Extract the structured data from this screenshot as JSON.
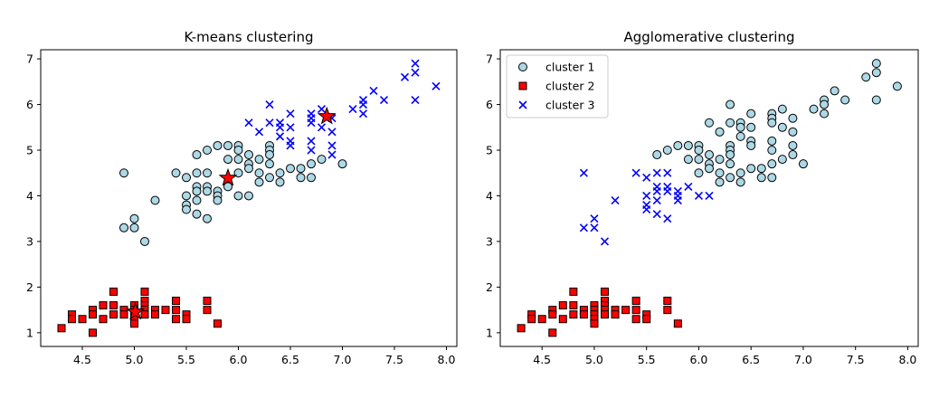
{
  "colors": {
    "cluster1": "#add8e6",
    "cluster2": "#ff0000",
    "cluster3": "#0000ff",
    "centroid": "#ff0000",
    "edge": "#000000"
  },
  "chart_data": [
    {
      "type": "scatter",
      "title": "K-means clustering",
      "xlabel": "",
      "ylabel": "",
      "xlim": [
        4.1,
        8.1
      ],
      "ylim": [
        0.7,
        7.2
      ],
      "xticks": [
        4.5,
        5.0,
        5.5,
        6.0,
        6.5,
        7.0,
        7.5,
        8.0
      ],
      "yticks": [
        1,
        2,
        3,
        4,
        5,
        6,
        7
      ],
      "grid": false,
      "legend": null,
      "series": [
        {
          "marker": "circle",
          "color_key": "cluster1",
          "points": [
            [
              4.9,
              4.5
            ],
            [
              4.9,
              3.3
            ],
            [
              5.0,
              3.5
            ],
            [
              5.0,
              3.3
            ],
            [
              5.1,
              3.0
            ],
            [
              5.2,
              3.9
            ],
            [
              5.4,
              4.5
            ],
            [
              5.5,
              4.4
            ],
            [
              5.5,
              4.0
            ],
            [
              5.5,
              3.8
            ],
            [
              5.5,
              3.7
            ],
            [
              5.6,
              4.9
            ],
            [
              5.6,
              4.5
            ],
            [
              5.6,
              4.2
            ],
            [
              5.6,
              4.1
            ],
            [
              5.6,
              3.9
            ],
            [
              5.6,
              3.6
            ],
            [
              5.7,
              5.0
            ],
            [
              5.7,
              4.5
            ],
            [
              5.7,
              4.2
            ],
            [
              5.7,
              4.1
            ],
            [
              5.7,
              3.5
            ],
            [
              5.8,
              5.1
            ],
            [
              5.8,
              4.1
            ],
            [
              5.8,
              4.0
            ],
            [
              5.8,
              3.9
            ],
            [
              5.9,
              5.1
            ],
            [
              5.9,
              4.8
            ],
            [
              5.9,
              4.2
            ],
            [
              6.0,
              5.1
            ],
            [
              6.0,
              5.0
            ],
            [
              6.0,
              4.8
            ],
            [
              6.0,
              4.5
            ],
            [
              6.0,
              4.0
            ],
            [
              6.1,
              4.9
            ],
            [
              6.1,
              4.7
            ],
            [
              6.1,
              4.6
            ],
            [
              6.1,
              4.0
            ],
            [
              6.2,
              4.8
            ],
            [
              6.2,
              4.5
            ],
            [
              6.2,
              4.3
            ],
            [
              6.3,
              5.1
            ],
            [
              6.3,
              5.0
            ],
            [
              6.3,
              4.9
            ],
            [
              6.3,
              4.7
            ],
            [
              6.3,
              4.4
            ],
            [
              6.4,
              4.5
            ],
            [
              6.4,
              4.3
            ],
            [
              6.5,
              4.6
            ],
            [
              6.6,
              4.6
            ],
            [
              6.6,
              4.4
            ],
            [
              6.7,
              4.7
            ],
            [
              6.7,
              4.4
            ],
            [
              6.8,
              4.8
            ],
            [
              7.0,
              4.7
            ]
          ]
        },
        {
          "marker": "square",
          "color_key": "cluster2",
          "points": [
            [
              4.3,
              1.1
            ],
            [
              4.4,
              1.4
            ],
            [
              4.4,
              1.3
            ],
            [
              4.5,
              1.3
            ],
            [
              4.6,
              1.5
            ],
            [
              4.6,
              1.4
            ],
            [
              4.6,
              1.0
            ],
            [
              4.7,
              1.6
            ],
            [
              4.7,
              1.3
            ],
            [
              4.8,
              1.9
            ],
            [
              4.8,
              1.6
            ],
            [
              4.8,
              1.4
            ],
            [
              4.9,
              1.5
            ],
            [
              4.9,
              1.4
            ],
            [
              5.0,
              1.6
            ],
            [
              5.0,
              1.5
            ],
            [
              5.0,
              1.4
            ],
            [
              5.0,
              1.3
            ],
            [
              5.0,
              1.2
            ],
            [
              5.1,
              1.9
            ],
            [
              5.1,
              1.7
            ],
            [
              5.1,
              1.6
            ],
            [
              5.1,
              1.5
            ],
            [
              5.1,
              1.4
            ],
            [
              5.2,
              1.5
            ],
            [
              5.2,
              1.4
            ],
            [
              5.3,
              1.5
            ],
            [
              5.4,
              1.7
            ],
            [
              5.4,
              1.5
            ],
            [
              5.4,
              1.3
            ],
            [
              5.5,
              1.4
            ],
            [
              5.5,
              1.3
            ],
            [
              5.7,
              1.7
            ],
            [
              5.7,
              1.5
            ],
            [
              5.8,
              1.2
            ]
          ]
        },
        {
          "marker": "x",
          "color_key": "cluster3",
          "points": [
            [
              6.1,
              5.6
            ],
            [
              6.2,
              5.4
            ],
            [
              6.3,
              6.0
            ],
            [
              6.3,
              5.6
            ],
            [
              6.4,
              5.6
            ],
            [
              6.4,
              5.5
            ],
            [
              6.4,
              5.3
            ],
            [
              6.5,
              5.8
            ],
            [
              6.5,
              5.5
            ],
            [
              6.5,
              5.2
            ],
            [
              6.5,
              5.1
            ],
            [
              6.7,
              5.8
            ],
            [
              6.7,
              5.7
            ],
            [
              6.7,
              5.6
            ],
            [
              6.7,
              5.2
            ],
            [
              6.7,
              5.0
            ],
            [
              6.8,
              5.9
            ],
            [
              6.8,
              5.5
            ],
            [
              6.9,
              5.7
            ],
            [
              6.9,
              5.4
            ],
            [
              6.9,
              5.1
            ],
            [
              6.9,
              4.9
            ],
            [
              7.1,
              5.9
            ],
            [
              7.2,
              6.1
            ],
            [
              7.2,
              6.0
            ],
            [
              7.2,
              5.8
            ],
            [
              7.3,
              6.3
            ],
            [
              7.4,
              6.1
            ],
            [
              7.6,
              6.6
            ],
            [
              7.7,
              6.9
            ],
            [
              7.7,
              6.7
            ],
            [
              7.7,
              6.1
            ],
            [
              7.9,
              6.4
            ]
          ]
        }
      ],
      "centroids": [
        [
          5.9,
          4.39
        ],
        [
          5.01,
          1.46
        ],
        [
          6.85,
          5.74
        ]
      ]
    },
    {
      "type": "scatter",
      "title": "Agglomerative clustering",
      "xlabel": "",
      "ylabel": "",
      "xlim": [
        4.1,
        8.1
      ],
      "ylim": [
        0.7,
        7.2
      ],
      "xticks": [
        4.5,
        5.0,
        5.5,
        6.0,
        6.5,
        7.0,
        7.5,
        8.0
      ],
      "yticks": [
        1,
        2,
        3,
        4,
        5,
        6,
        7
      ],
      "grid": false,
      "legend": "top-left",
      "series": [
        {
          "name": "cluster 1",
          "marker": "circle",
          "color_key": "cluster1",
          "points": [
            [
              5.6,
              4.9
            ],
            [
              5.7,
              5.0
            ],
            [
              5.8,
              5.1
            ],
            [
              5.9,
              5.1
            ],
            [
              5.9,
              4.8
            ],
            [
              6.0,
              5.1
            ],
            [
              6.0,
              5.0
            ],
            [
              6.0,
              4.8
            ],
            [
              6.0,
              4.5
            ],
            [
              6.1,
              5.6
            ],
            [
              6.1,
              4.9
            ],
            [
              6.1,
              4.7
            ],
            [
              6.1,
              4.6
            ],
            [
              6.2,
              5.4
            ],
            [
              6.2,
              4.8
            ],
            [
              6.2,
              4.5
            ],
            [
              6.2,
              4.3
            ],
            [
              6.3,
              6.0
            ],
            [
              6.3,
              5.6
            ],
            [
              6.3,
              5.1
            ],
            [
              6.3,
              5.0
            ],
            [
              6.3,
              4.9
            ],
            [
              6.3,
              4.7
            ],
            [
              6.3,
              4.4
            ],
            [
              6.4,
              5.6
            ],
            [
              6.4,
              5.5
            ],
            [
              6.4,
              5.3
            ],
            [
              6.4,
              4.5
            ],
            [
              6.4,
              4.3
            ],
            [
              6.5,
              5.8
            ],
            [
              6.5,
              5.5
            ],
            [
              6.5,
              5.2
            ],
            [
              6.5,
              5.1
            ],
            [
              6.5,
              4.6
            ],
            [
              6.6,
              4.6
            ],
            [
              6.6,
              4.4
            ],
            [
              6.7,
              5.8
            ],
            [
              6.7,
              5.7
            ],
            [
              6.7,
              5.6
            ],
            [
              6.7,
              5.2
            ],
            [
              6.7,
              5.0
            ],
            [
              6.7,
              4.7
            ],
            [
              6.7,
              4.4
            ],
            [
              6.8,
              5.9
            ],
            [
              6.8,
              5.5
            ],
            [
              6.8,
              4.8
            ],
            [
              6.9,
              5.7
            ],
            [
              6.9,
              5.4
            ],
            [
              6.9,
              5.1
            ],
            [
              6.9,
              4.9
            ],
            [
              7.0,
              4.7
            ],
            [
              7.1,
              5.9
            ],
            [
              7.2,
              6.1
            ],
            [
              7.2,
              6.0
            ],
            [
              7.2,
              5.8
            ],
            [
              7.3,
              6.3
            ],
            [
              7.4,
              6.1
            ],
            [
              7.6,
              6.6
            ],
            [
              7.7,
              6.9
            ],
            [
              7.7,
              6.7
            ],
            [
              7.7,
              6.1
            ],
            [
              7.9,
              6.4
            ]
          ]
        },
        {
          "name": "cluster 2",
          "marker": "square",
          "color_key": "cluster2",
          "points": [
            [
              4.3,
              1.1
            ],
            [
              4.4,
              1.4
            ],
            [
              4.4,
              1.3
            ],
            [
              4.5,
              1.3
            ],
            [
              4.6,
              1.5
            ],
            [
              4.6,
              1.4
            ],
            [
              4.6,
              1.0
            ],
            [
              4.7,
              1.6
            ],
            [
              4.7,
              1.3
            ],
            [
              4.8,
              1.9
            ],
            [
              4.8,
              1.6
            ],
            [
              4.8,
              1.4
            ],
            [
              4.9,
              1.5
            ],
            [
              4.9,
              1.4
            ],
            [
              5.0,
              1.6
            ],
            [
              5.0,
              1.5
            ],
            [
              5.0,
              1.4
            ],
            [
              5.0,
              1.3
            ],
            [
              5.0,
              1.2
            ],
            [
              5.1,
              1.9
            ],
            [
              5.1,
              1.7
            ],
            [
              5.1,
              1.6
            ],
            [
              5.1,
              1.5
            ],
            [
              5.1,
              1.4
            ],
            [
              5.2,
              1.5
            ],
            [
              5.2,
              1.4
            ],
            [
              5.3,
              1.5
            ],
            [
              5.4,
              1.7
            ],
            [
              5.4,
              1.5
            ],
            [
              5.4,
              1.3
            ],
            [
              5.5,
              1.4
            ],
            [
              5.5,
              1.3
            ],
            [
              5.7,
              1.7
            ],
            [
              5.7,
              1.5
            ],
            [
              5.8,
              1.2
            ]
          ]
        },
        {
          "name": "cluster 3",
          "marker": "x",
          "color_key": "cluster3",
          "points": [
            [
              4.9,
              4.5
            ],
            [
              4.9,
              3.3
            ],
            [
              5.0,
              3.5
            ],
            [
              5.0,
              3.3
            ],
            [
              5.1,
              3.0
            ],
            [
              5.2,
              3.9
            ],
            [
              5.4,
              4.5
            ],
            [
              5.5,
              4.4
            ],
            [
              5.5,
              4.0
            ],
            [
              5.5,
              3.8
            ],
            [
              5.5,
              3.7
            ],
            [
              5.6,
              4.5
            ],
            [
              5.6,
              4.2
            ],
            [
              5.6,
              4.1
            ],
            [
              5.6,
              3.9
            ],
            [
              5.6,
              3.6
            ],
            [
              5.7,
              4.5
            ],
            [
              5.7,
              4.2
            ],
            [
              5.7,
              4.1
            ],
            [
              5.7,
              3.5
            ],
            [
              5.8,
              4.1
            ],
            [
              5.8,
              4.0
            ],
            [
              5.8,
              3.9
            ],
            [
              5.9,
              4.2
            ],
            [
              6.0,
              4.0
            ],
            [
              6.1,
              4.0
            ]
          ]
        }
      ]
    }
  ]
}
